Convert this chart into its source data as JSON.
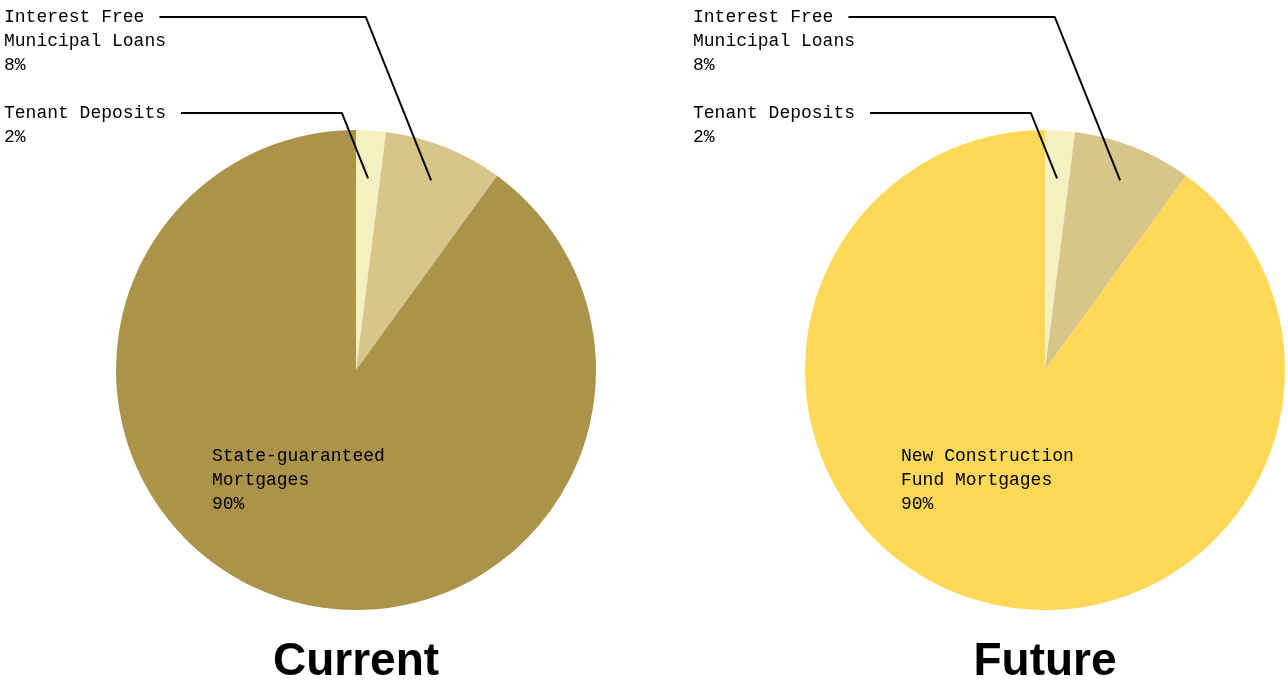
{
  "chart_data": [
    {
      "type": "pie",
      "title": "Current",
      "categories": [
        "Tenant Deposits",
        "Interest Free Municipal Loans",
        "State-guaranteed Mortgages"
      ],
      "values": [
        2,
        8,
        90
      ],
      "value_labels": [
        "2%",
        "8%",
        "90%"
      ],
      "colors": [
        "#f5f0c0",
        "#d8c589",
        "#ab9449"
      ]
    },
    {
      "type": "pie",
      "title": "Future",
      "categories": [
        "Tenant Deposits",
        "Interest Free Municipal Loans",
        "New Construction Fund Mortgages"
      ],
      "values": [
        2,
        8,
        90
      ],
      "value_labels": [
        "2%",
        "8%",
        "90%"
      ],
      "colors": [
        "#f5f0c0",
        "#d8c589",
        "#fed856"
      ]
    }
  ]
}
